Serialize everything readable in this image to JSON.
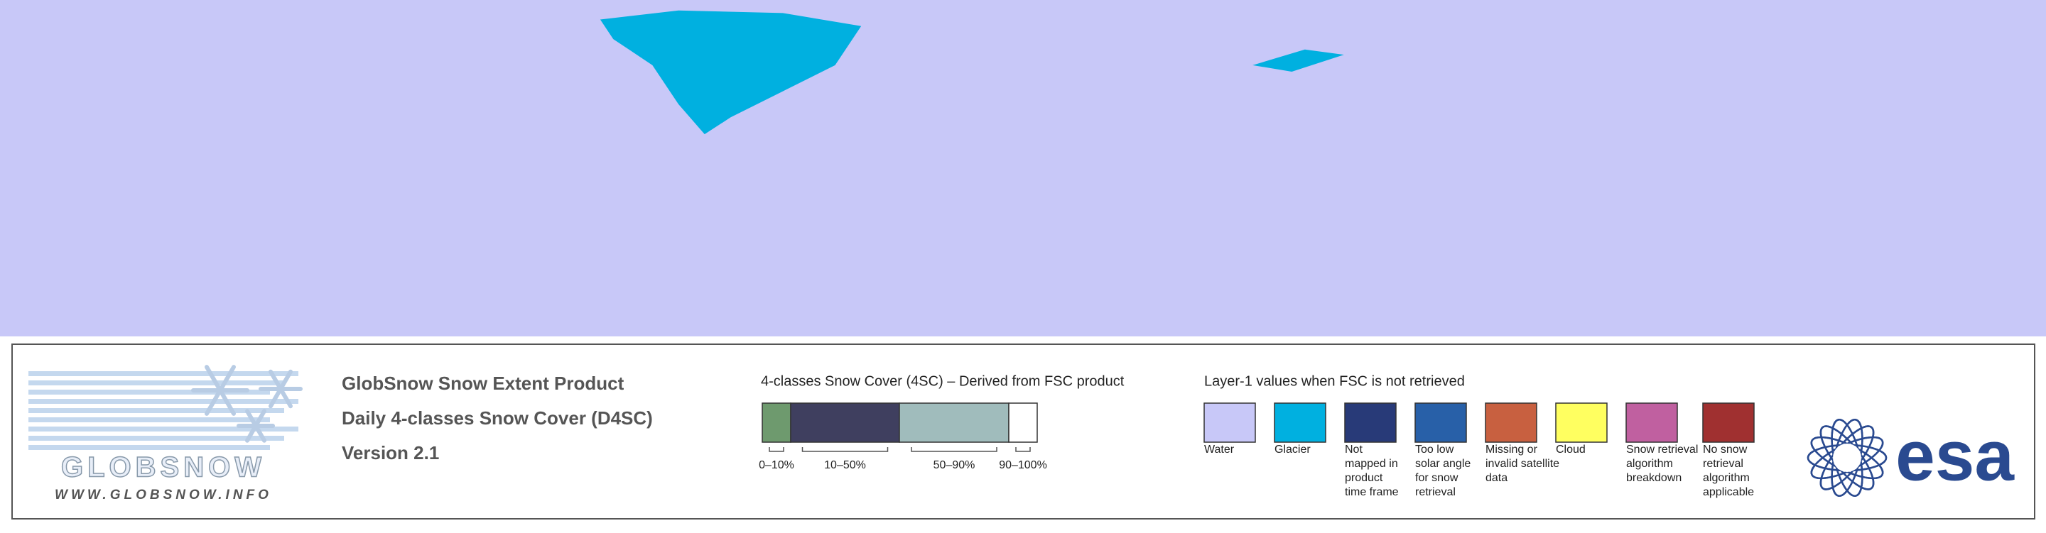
{
  "product": {
    "lines": [
      "GlobSnow Snow Extent Product",
      "Daily 4-classes Snow Cover (D4SC)",
      "Version 2.1"
    ]
  },
  "logo": {
    "name": "GLOBSNOW",
    "url": "WWW.GLOBSNOW.INFO"
  },
  "legend_4sc": {
    "title": "4-classes Snow Cover (4SC) – Derived from FSC product",
    "classes": [
      {
        "label": "0–10%",
        "color": "#6e9a6e"
      },
      {
        "label": "10–50%",
        "color": "#3f3f5f"
      },
      {
        "label": "50–90%",
        "color": "#a0bcbc"
      },
      {
        "label": "90–100%",
        "color": "#ffffff"
      }
    ]
  },
  "legend_layer1": {
    "title": "Layer-1 values when FSC is not retrieved",
    "items": [
      {
        "label": [
          "Water"
        ],
        "color": "#c8c8f8"
      },
      {
        "label": [
          "Glacier"
        ],
        "color": "#00b0e0"
      },
      {
        "label": [
          "Not",
          "mapped in",
          "product",
          "time frame"
        ],
        "color": "#283a78"
      },
      {
        "label": [
          "Too low",
          "solar angle",
          "for snow",
          "retrieval"
        ],
        "color": "#2860a8"
      },
      {
        "label": [
          "Missing or",
          "invalid satellite",
          "data"
        ],
        "color": "#c86040"
      },
      {
        "label": [
          "Cloud"
        ],
        "color": "#ffff60"
      },
      {
        "label": [
          "Snow retrieval",
          "algorithm",
          "breakdown"
        ],
        "color": "#c060a0"
      },
      {
        "label": [
          "No snow",
          "retrieval",
          "algorithm",
          "applicable"
        ],
        "color": "#a03030"
      }
    ]
  },
  "esa": "esa"
}
